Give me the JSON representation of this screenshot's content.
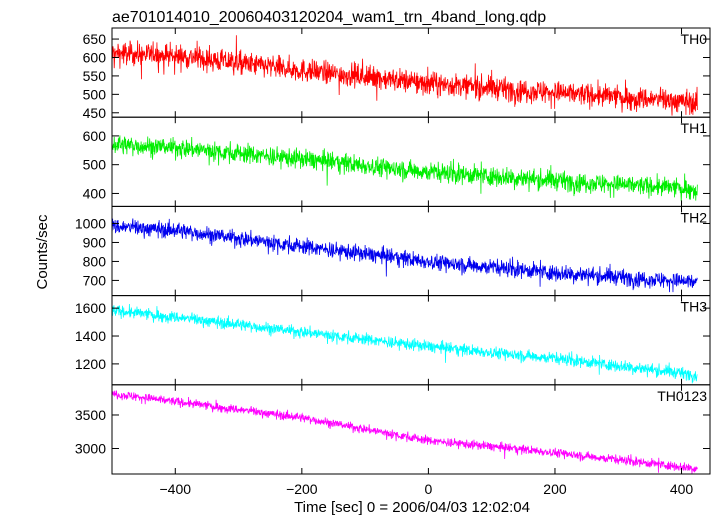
{
  "title": "ae701014010_20060403120204_wam1_trn_4band_long.qdp",
  "xlabel": "Time [sec] 0 = 2006/04/03 12:02:04",
  "ylabel": "Counts/sec",
  "chart_data": {
    "type": "line",
    "subtype": "stacked-light-curves",
    "shared_x": true,
    "x_range": [
      -502,
      425
    ],
    "xlim": [
      -500,
      445
    ],
    "x_ticks": [
      -400,
      -200,
      0,
      200,
      400
    ],
    "x_tick_labels": [
      "−400",
      "−200",
      "0",
      "200",
      "400"
    ],
    "xlabel": "Time [sec] 0 = 2006/04/03 12:02:04",
    "ylabel": "Counts/sec",
    "panels": [
      {
        "name": "TH0",
        "color": "#ff0000",
        "ylim": [
          438,
          680
        ],
        "yticks": [
          450,
          500,
          550,
          600,
          650
        ],
        "ytick_labels": [
          "450",
          "500",
          "550",
          "600",
          "650"
        ],
        "trend": [
          [
            -502,
            612
          ],
          [
            -400,
            605
          ],
          [
            -200,
            565
          ],
          [
            0,
            530
          ],
          [
            200,
            505
          ],
          [
            425,
            478
          ]
        ],
        "noise": 28
      },
      {
        "name": "TH1",
        "color": "#00ee00",
        "ylim": [
          355,
          665
        ],
        "yticks": [
          400,
          500,
          600
        ],
        "ytick_labels": [
          "400",
          "500",
          "600"
        ],
        "trend": [
          [
            -502,
            570
          ],
          [
            -400,
            560
          ],
          [
            -200,
            520
          ],
          [
            0,
            475
          ],
          [
            200,
            445
          ],
          [
            425,
            415
          ]
        ],
        "noise": 30
      },
      {
        "name": "TH2",
        "color": "#0000ee",
        "ylim": [
          620,
          1090
        ],
        "yticks": [
          700,
          800,
          900,
          1000
        ],
        "ytick_labels": [
          "700",
          "800",
          "900",
          "1000"
        ],
        "trend": [
          [
            -502,
            985
          ],
          [
            -400,
            965
          ],
          [
            -200,
            880
          ],
          [
            0,
            800
          ],
          [
            200,
            740
          ],
          [
            425,
            690
          ]
        ],
        "noise": 38
      },
      {
        "name": "TH3",
        "color": "#00ffff",
        "ylim": [
          1050,
          1690
        ],
        "yticks": [
          1200,
          1400,
          1600
        ],
        "ytick_labels": [
          "1200",
          "1400",
          "1600"
        ],
        "trend": [
          [
            -502,
            1585
          ],
          [
            -400,
            1535
          ],
          [
            -200,
            1430
          ],
          [
            0,
            1325
          ],
          [
            200,
            1240
          ],
          [
            425,
            1120
          ]
        ],
        "noise": 38
      },
      {
        "name": "TH0123",
        "color": "#ff00ff",
        "ylim": [
          2620,
          3950
        ],
        "yticks": [
          3000,
          3500
        ],
        "ytick_labels": [
          "3000",
          "3500"
        ],
        "trend": [
          [
            -502,
            3820
          ],
          [
            -400,
            3700
          ],
          [
            -200,
            3460
          ],
          [
            0,
            3120
          ],
          [
            200,
            2940
          ],
          [
            425,
            2700
          ]
        ],
        "noise": 60
      }
    ]
  }
}
